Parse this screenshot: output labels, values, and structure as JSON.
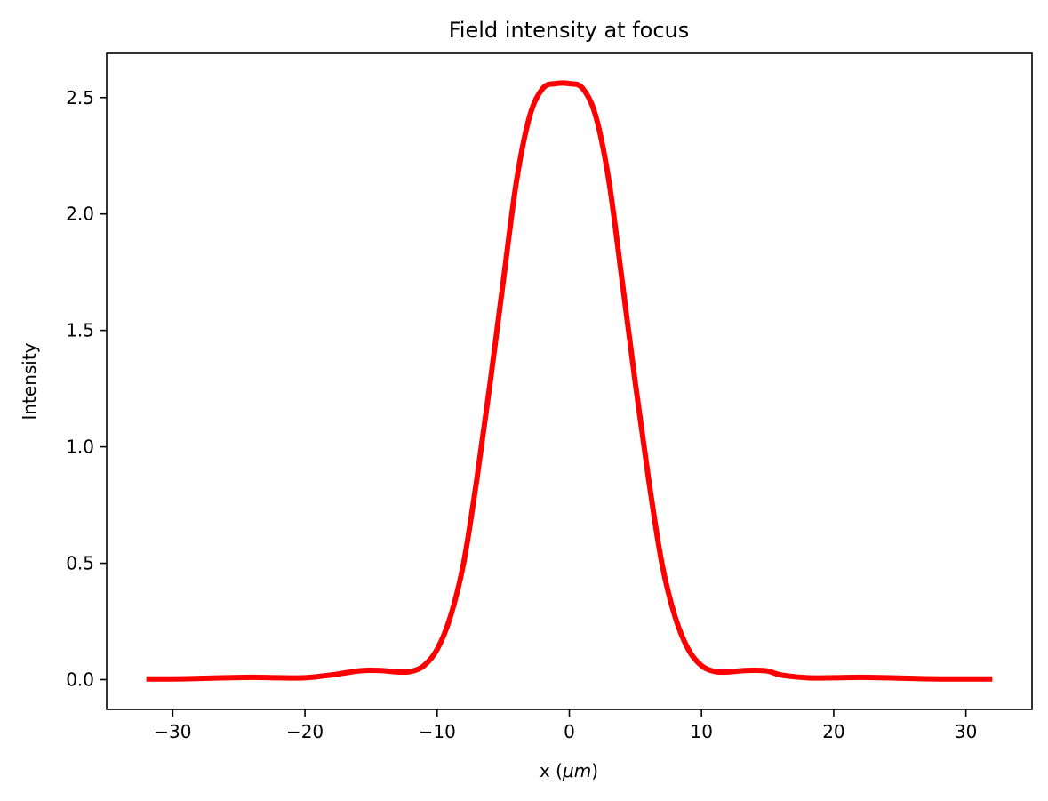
{
  "chart_data": {
    "type": "line",
    "title": "Field intensity at focus",
    "xlabel_prefix": "x (",
    "xlabel_unit": "μm",
    "xlabel_suffix": ")",
    "ylabel": "Intensity",
    "xlim": [
      -35,
      35
    ],
    "ylim": [
      -0.128,
      2.69
    ],
    "xticks": [
      -30,
      -20,
      -10,
      0,
      10,
      20,
      30
    ],
    "xtick_labels": [
      "−30",
      "−20",
      "−10",
      "0",
      "10",
      "20",
      "30"
    ],
    "yticks": [
      0.0,
      0.5,
      1.0,
      1.5,
      2.0,
      2.5
    ],
    "ytick_labels": [
      "0.0",
      "0.5",
      "1.0",
      "1.5",
      "2.0",
      "2.5"
    ],
    "grid": false,
    "legend": "none",
    "series": [
      {
        "color": "#ff0000",
        "x": [
          -32,
          -30,
          -28,
          -26,
          -24,
          -22,
          -20,
          -18,
          -16,
          -15,
          -14,
          -13,
          -12,
          -11,
          -10,
          -9,
          -8,
          -7,
          -6,
          -5,
          -4,
          -3,
          -2,
          -1,
          0,
          1,
          2,
          3,
          4,
          5,
          6,
          7,
          8,
          9,
          10,
          11,
          12,
          13,
          14,
          15,
          16,
          18,
          20,
          22,
          24,
          26,
          28,
          30,
          32
        ],
        "y": [
          0.003,
          0.003,
          0.005,
          0.008,
          0.01,
          0.008,
          0.008,
          0.02,
          0.037,
          0.04,
          0.038,
          0.033,
          0.035,
          0.06,
          0.13,
          0.27,
          0.5,
          0.86,
          1.27,
          1.71,
          2.14,
          2.42,
          2.54,
          2.56,
          2.56,
          2.54,
          2.42,
          2.14,
          1.71,
          1.27,
          0.86,
          0.5,
          0.27,
          0.13,
          0.06,
          0.035,
          0.033,
          0.038,
          0.04,
          0.037,
          0.02,
          0.008,
          0.008,
          0.01,
          0.008,
          0.005,
          0.003,
          0.003,
          0.003
        ]
      }
    ]
  }
}
